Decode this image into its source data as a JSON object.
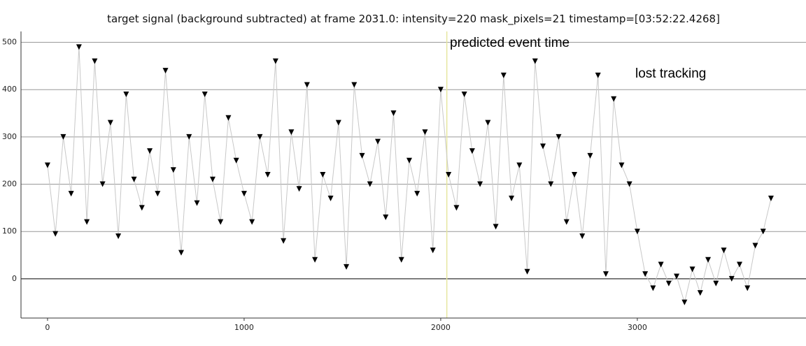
{
  "chart_data": {
    "type": "line",
    "title": "target signal (background subtracted) at frame 2031.0: intensity=220 mask_pixels=21 timestamp=[03:52:22.4268]",
    "x": [
      0,
      40,
      80,
      120,
      160,
      200,
      240,
      280,
      320,
      360,
      400,
      440,
      480,
      520,
      560,
      600,
      640,
      680,
      720,
      760,
      800,
      840,
      880,
      920,
      960,
      1000,
      1040,
      1080,
      1120,
      1160,
      1200,
      1240,
      1280,
      1320,
      1360,
      1400,
      1440,
      1480,
      1520,
      1560,
      1600,
      1640,
      1680,
      1720,
      1760,
      1800,
      1840,
      1880,
      1920,
      1960,
      2000,
      2040,
      2080,
      2120,
      2160,
      2200,
      2240,
      2280,
      2320,
      2360,
      2400,
      2440,
      2480,
      2520,
      2560,
      2600,
      2640,
      2680,
      2720,
      2760,
      2800,
      2840,
      2880,
      2920,
      2960,
      3000,
      3040,
      3080,
      3120,
      3160,
      3200,
      3240,
      3280,
      3320,
      3360,
      3400,
      3440,
      3480,
      3520,
      3560,
      3600,
      3640,
      3680
    ],
    "series": [
      {
        "line_color": "#c8c8c8",
        "marker_color": "#000000",
        "values": [
          240,
          95,
          300,
          180,
          490,
          120,
          460,
          200,
          330,
          90,
          390,
          210,
          150,
          270,
          180,
          440,
          230,
          55,
          300,
          160,
          390,
          210,
          120,
          340,
          250,
          180,
          120,
          300,
          220,
          460,
          80,
          310,
          190,
          410,
          40,
          220,
          170,
          330,
          25,
          410,
          260,
          200,
          290,
          130,
          350,
          40,
          250,
          180,
          310,
          60,
          400,
          220,
          150,
          390,
          270,
          200,
          330,
          110,
          430,
          170,
          240,
          15,
          460,
          280,
          200,
          300,
          120,
          220,
          90,
          260,
          430,
          10,
          380,
          240,
          200,
          100,
          10,
          -20,
          30,
          -10,
          5,
          -50,
          20,
          -30,
          40,
          -10,
          60,
          0,
          30,
          -20,
          70,
          100,
          170
        ]
      }
    ],
    "event_frame": 2031,
    "event_color": "#e6e6a0",
    "annotations": [
      {
        "text": "predicted event time"
      },
      {
        "text": "lost tracking"
      }
    ],
    "xlim": [
      -135,
      3858
    ],
    "ylim": [
      -83,
      523
    ],
    "xticks": [
      0,
      1000,
      2000,
      3000
    ],
    "yticks": [
      0,
      100,
      200,
      300,
      400,
      500
    ],
    "grid": true
  }
}
